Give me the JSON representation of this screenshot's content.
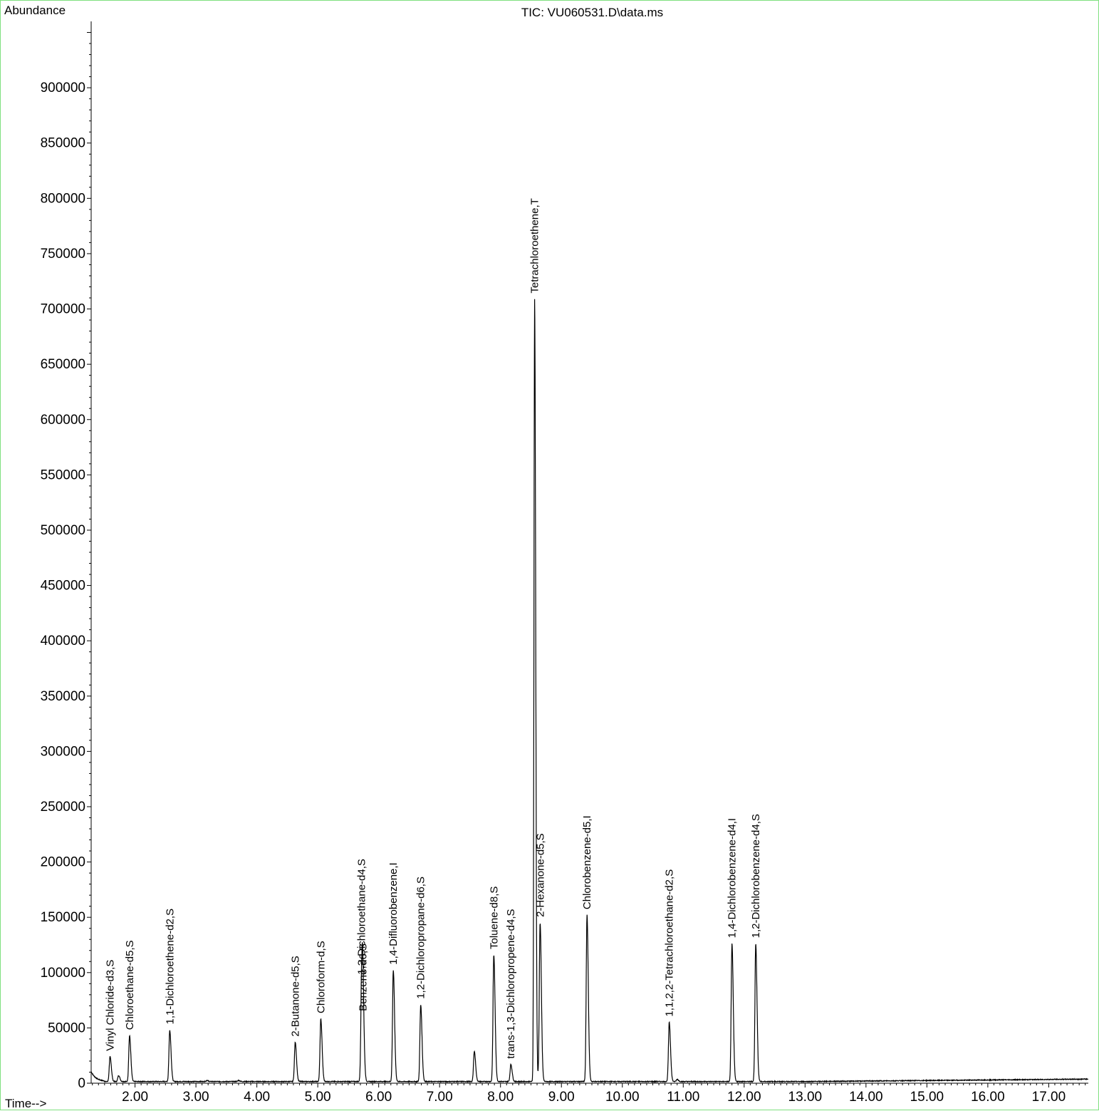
{
  "header": {
    "y_axis_title": "Abundance",
    "title": "TIC: VU060531.D\\data.ms",
    "x_axis_title": "Time-->"
  },
  "colors": {
    "frame": "#7fe07f",
    "trace": "#000000",
    "axis": "#000000"
  },
  "chart_data": {
    "type": "line",
    "title": "TIC: VU060531.D\\data.ms",
    "xlabel": "Time-->",
    "ylabel": "Abundance",
    "xlim": [
      1.28,
      17.65
    ],
    "ylim": [
      0,
      960000
    ],
    "grid": false,
    "x_ticks": [
      2.0,
      3.0,
      4.0,
      5.0,
      6.0,
      7.0,
      8.0,
      9.0,
      10.0,
      11.0,
      12.0,
      13.0,
      14.0,
      15.0,
      16.0,
      17.0
    ],
    "x_tick_labels": [
      "2.00",
      "3.00",
      "4.00",
      "5.00",
      "6.00",
      "7.00",
      "8.00",
      "9.00",
      "10.00",
      "11.00",
      "12.00",
      "13.00",
      "14.00",
      "15.00",
      "16.00",
      "17.00"
    ],
    "y_ticks": [
      0,
      50000,
      100000,
      150000,
      200000,
      250000,
      300000,
      350000,
      400000,
      450000,
      500000,
      550000,
      600000,
      650000,
      700000,
      750000,
      800000,
      850000,
      900000
    ],
    "y_tick_labels": [
      "0",
      "50000",
      "100000",
      "150000",
      "200000",
      "250000",
      "300000",
      "350000",
      "400000",
      "450000",
      "500000",
      "550000",
      "600000",
      "650000",
      "700000",
      "750000",
      "800000",
      "850000",
      "900000"
    ],
    "baseline": 1500,
    "peaks": [
      {
        "rt": 1.59,
        "height": 24000,
        "label": "Vinyl Chloride-d3,S"
      },
      {
        "rt": 1.73,
        "height": 7000,
        "label": ""
      },
      {
        "rt": 1.91,
        "height": 43000,
        "label": "Chloroethane-d5,S"
      },
      {
        "rt": 2.57,
        "height": 48000,
        "label": "1,1-Dichloroethene-d2,S"
      },
      {
        "rt": 3.18,
        "height": 2500,
        "label": ""
      },
      {
        "rt": 3.7,
        "height": 2500,
        "label": ""
      },
      {
        "rt": 4.63,
        "height": 37000,
        "label": "2-Butanone-d5,S"
      },
      {
        "rt": 5.05,
        "height": 58000,
        "label": "Chloroform-d,S"
      },
      {
        "rt": 5.72,
        "height": 93000,
        "label": "1,2-Dichloroethane-d4,S"
      },
      {
        "rt": 5.74,
        "height": 60000,
        "label": "Benzene-d6,S"
      },
      {
        "rt": 6.24,
        "height": 102000,
        "label": "1,4-Difluorobenzene,I"
      },
      {
        "rt": 6.69,
        "height": 71000,
        "label": "1,2-Dichloropropane-d6,S"
      },
      {
        "rt": 7.57,
        "height": 29000,
        "label": ""
      },
      {
        "rt": 7.89,
        "height": 116000,
        "label": "Toluene-d8,S"
      },
      {
        "rt": 8.17,
        "height": 17000,
        "label": "trans-1,3-Dichloropropene-d4,S"
      },
      {
        "rt": 8.56,
        "height": 709000,
        "label": "Tetrachloroethene,T"
      },
      {
        "rt": 8.65,
        "height": 145000,
        "label": "2-Hexanone-d5,S"
      },
      {
        "rt": 9.42,
        "height": 152000,
        "label": "Chlorobenzene-d5,I"
      },
      {
        "rt": 10.77,
        "height": 55000,
        "label": "1,1,2,2-Tetrachloroethane-d2,S"
      },
      {
        "rt": 10.9,
        "height": 3500,
        "label": ""
      },
      {
        "rt": 11.8,
        "height": 126000,
        "label": "1,4-Dichlorobenzene-d4,I"
      },
      {
        "rt": 12.19,
        "height": 126000,
        "label": "1,2-Dichlorobenzene-d4,S"
      },
      {
        "rt": 12.77,
        "height": 1500,
        "label": ""
      }
    ]
  }
}
